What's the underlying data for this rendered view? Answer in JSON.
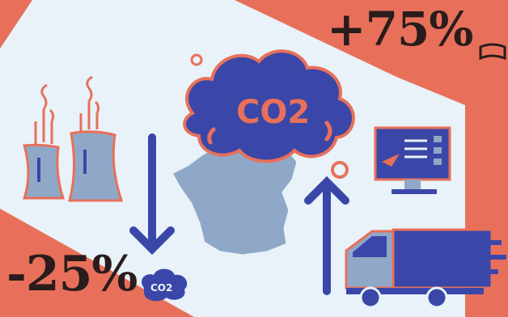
{
  "top_change": "+75%",
  "bottom_change": "-25%",
  "cloud_label": "CO2",
  "small_cloud_label": "CO2",
  "colors": {
    "background": "#e8f2f8",
    "accent": "#e8705a",
    "navy": "#3a47a8",
    "grey_blue": "#8fa8c8",
    "dark_text": "#2a1c1c"
  },
  "icons": [
    "factory-icon",
    "cloud-icon",
    "france-map-icon",
    "arrow-down-icon",
    "arrow-up-icon",
    "monitor-icon",
    "truck-icon",
    "small-cloud-icon",
    "book-icon"
  ]
}
